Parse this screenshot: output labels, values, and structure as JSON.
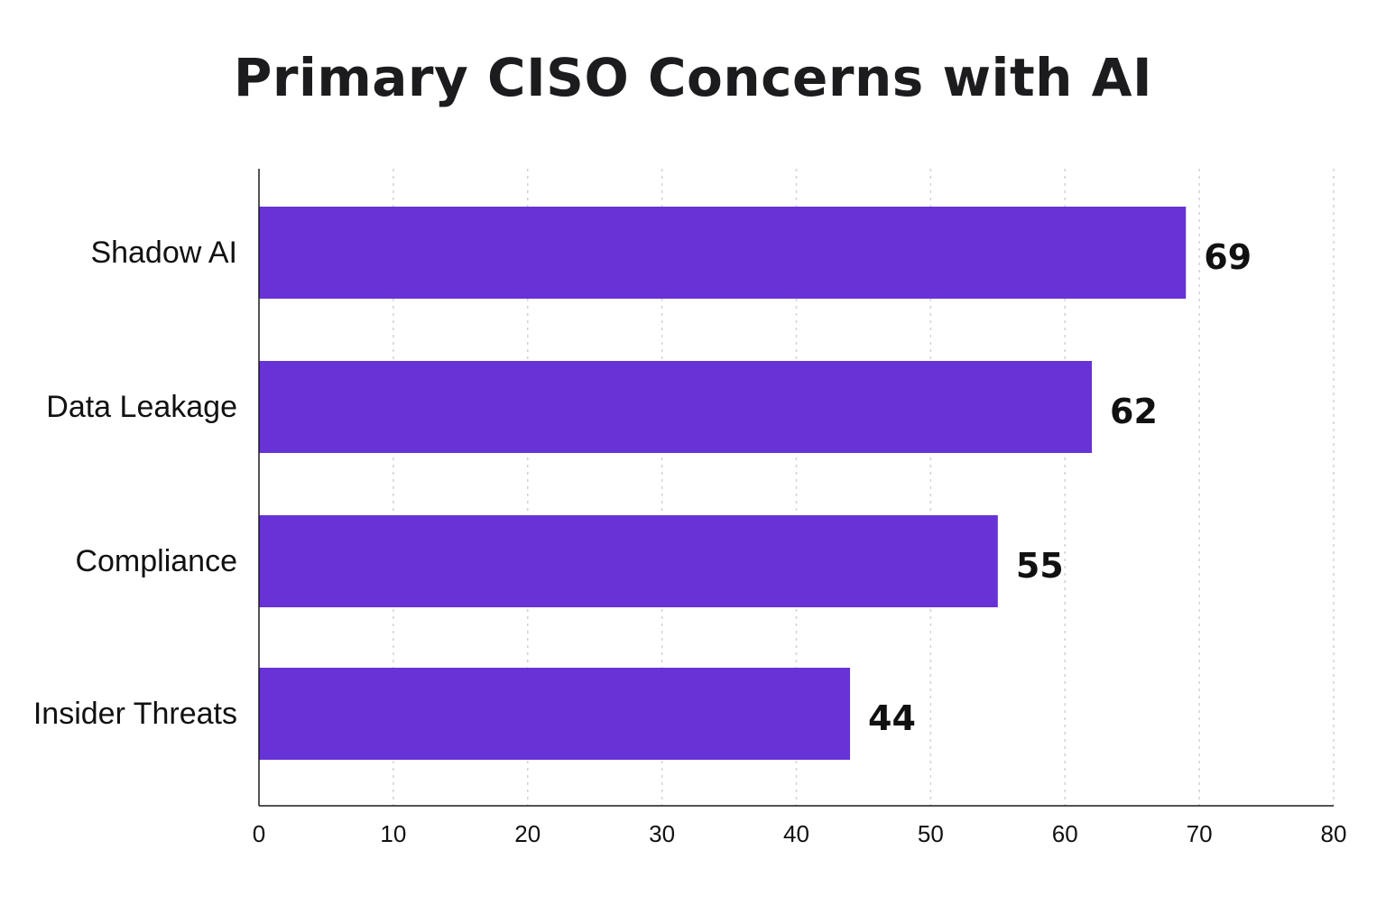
{
  "chart_data": {
    "type": "bar",
    "orientation": "horizontal",
    "title": "Primary CISO Concerns with AI",
    "categories": [
      "Shadow AI",
      "Data Leakage",
      "Compliance",
      "Insider Threats"
    ],
    "values": [
      69,
      62,
      55,
      44
    ],
    "data_labels": [
      "69",
      "62",
      "55",
      "44"
    ],
    "xlabel": "",
    "ylabel": "",
    "xlim": [
      0,
      80
    ],
    "x_ticks": [
      "0",
      "10",
      "20",
      "30",
      "40",
      "50",
      "60",
      "70",
      "80"
    ],
    "grid": "vertical dashed",
    "legend": "none",
    "bar_color": "#6732D6"
  }
}
